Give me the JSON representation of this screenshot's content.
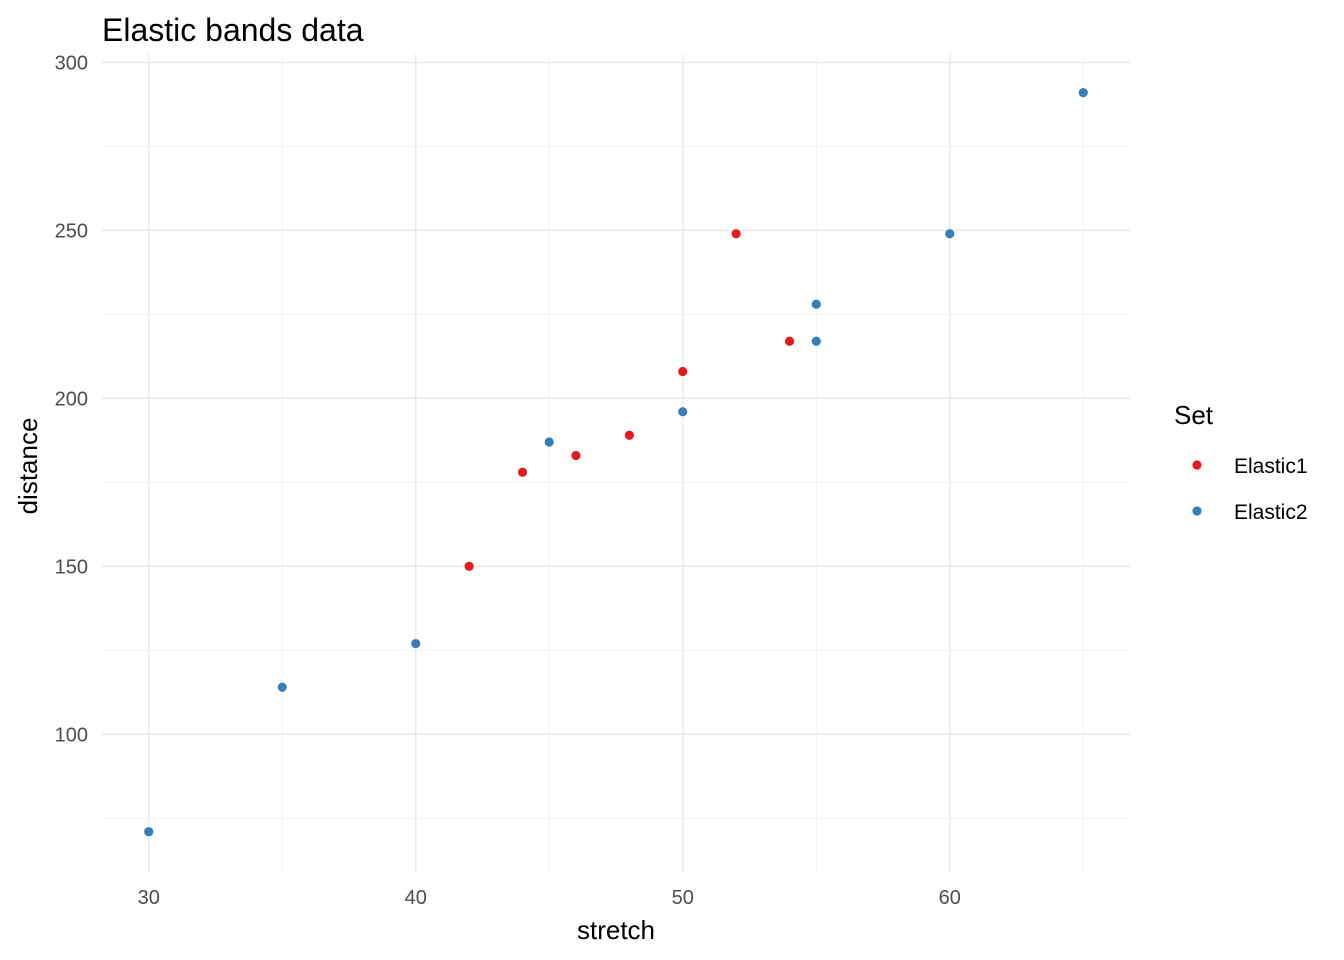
{
  "chart_data": {
    "type": "scatter",
    "title": "Elastic bands data",
    "xlabel": "stretch",
    "ylabel": "distance",
    "xlim": [
      28.25,
      66.75
    ],
    "ylim": [
      59,
      302.5
    ],
    "x_ticks": [
      30,
      40,
      50,
      60
    ],
    "x_tick_labels": [
      "30",
      "40",
      "50",
      "60"
    ],
    "x_minor_ticks": [
      35,
      45,
      55,
      65
    ],
    "y_ticks": [
      100,
      150,
      200,
      250,
      300
    ],
    "y_tick_labels": [
      "100",
      "150",
      "200",
      "250",
      "300"
    ],
    "y_minor_ticks": [
      75,
      125,
      175,
      225,
      275
    ],
    "grid": true,
    "legend": {
      "title": "Set",
      "position": "right"
    },
    "series": [
      {
        "name": "Elastic1",
        "color": "#e41a1c",
        "points": [
          {
            "x": 42,
            "y": 150
          },
          {
            "x": 44,
            "y": 178
          },
          {
            "x": 46,
            "y": 183
          },
          {
            "x": 48,
            "y": 189
          },
          {
            "x": 50,
            "y": 208
          },
          {
            "x": 52,
            "y": 249
          },
          {
            "x": 54,
            "y": 217
          }
        ]
      },
      {
        "name": "Elastic2",
        "color": "#377eb8",
        "points": [
          {
            "x": 30,
            "y": 71
          },
          {
            "x": 35,
            "y": 114
          },
          {
            "x": 40,
            "y": 127
          },
          {
            "x": 45,
            "y": 187
          },
          {
            "x": 50,
            "y": 196
          },
          {
            "x": 55,
            "y": 217
          },
          {
            "x": 55,
            "y": 228
          },
          {
            "x": 60,
            "y": 249
          },
          {
            "x": 65,
            "y": 291
          }
        ]
      }
    ]
  }
}
